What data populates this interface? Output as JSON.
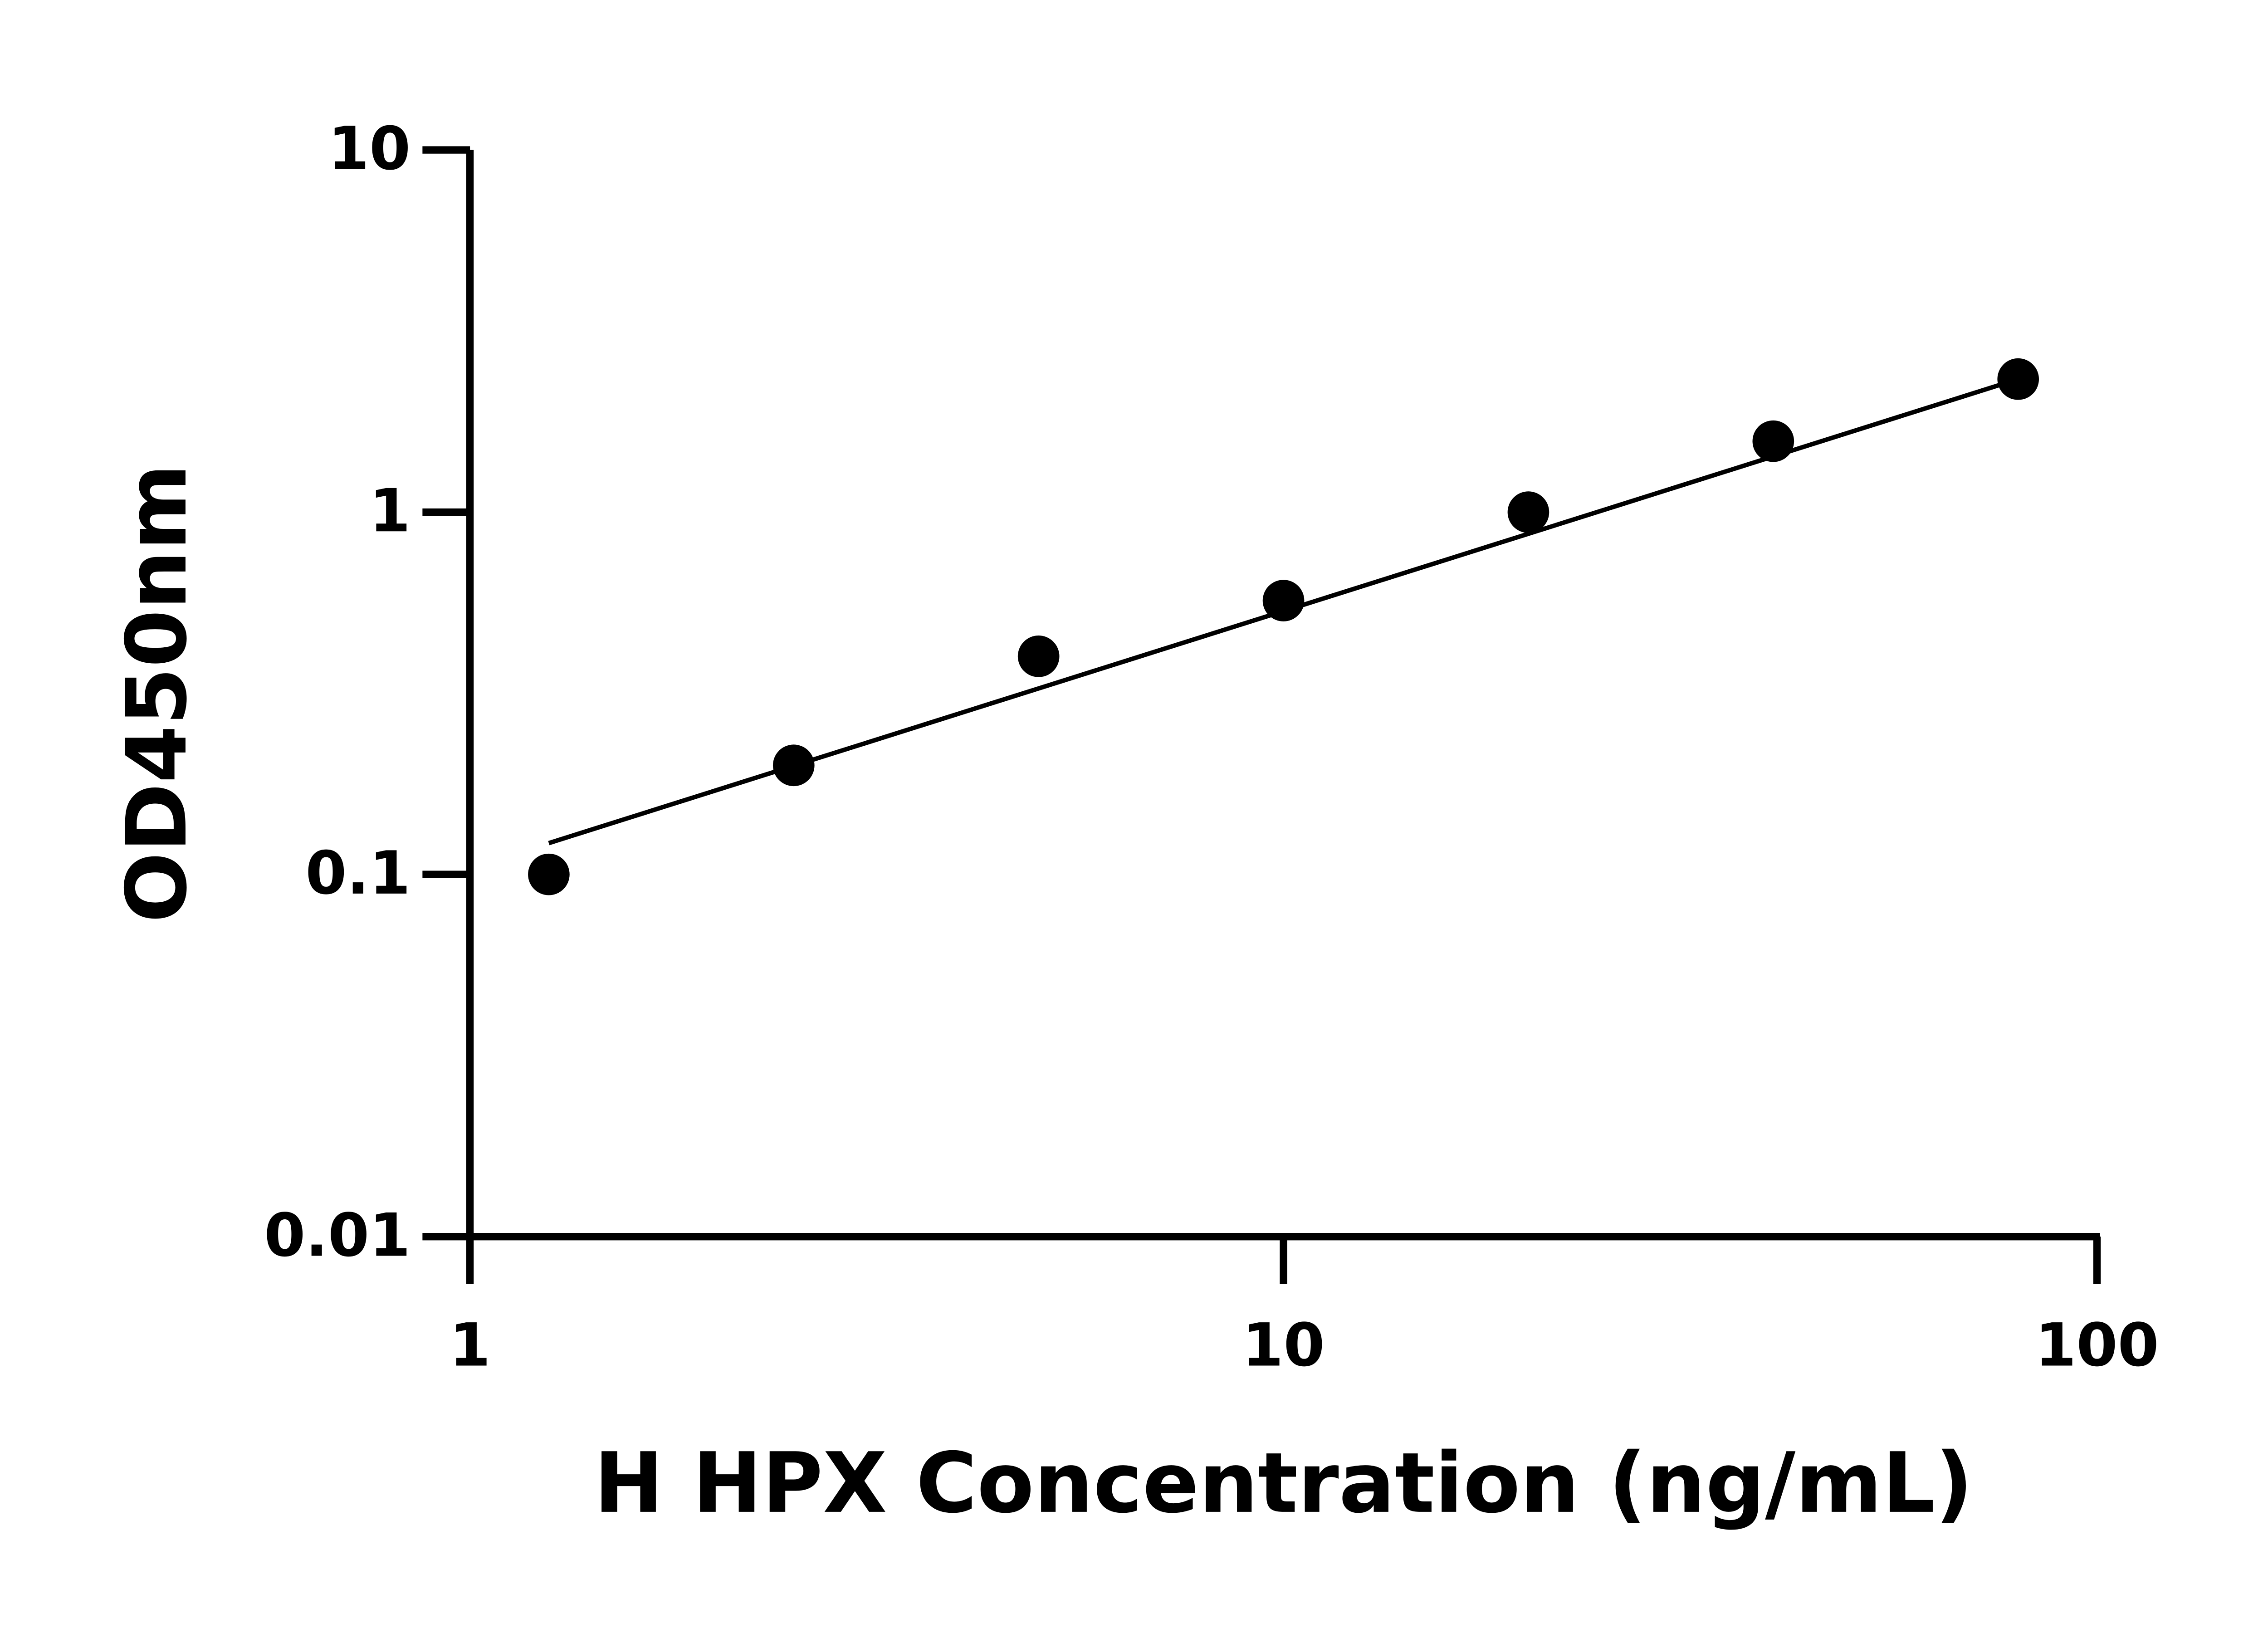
{
  "chart_data": {
    "type": "scatter",
    "xlabel": "H HPX Concentration (ng/mL)",
    "ylabel": "OD450nm",
    "x": [
      1.25,
      2.5,
      5,
      10,
      20,
      40,
      80
    ],
    "series": [
      {
        "color": "#000000",
        "values": [
          0.1,
          0.2,
          0.4,
          0.57,
          1.0,
          1.57,
          2.33
        ]
      }
    ],
    "fit": {
      "x": [
        1.25,
        80
      ],
      "values": [
        0.122,
        2.33
      ]
    },
    "xlim": [
      1,
      100
    ],
    "xticks": [
      1,
      10,
      100
    ],
    "ylim": [
      0.01,
      10
    ],
    "yticks": [
      0.01,
      0.1,
      1,
      10
    ],
    "xscale": "log",
    "yscale": "log"
  }
}
